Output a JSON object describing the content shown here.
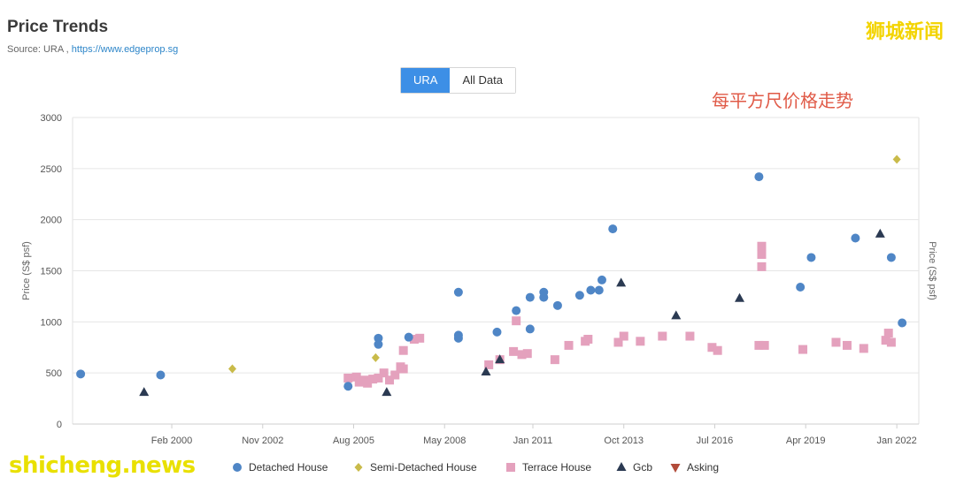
{
  "header": {
    "title": "Price Trends",
    "source_prefix": "Source: URA ,",
    "source_link": "https://www.edgeprop.sg"
  },
  "toggle": {
    "active": "URA",
    "inactive": "All Data"
  },
  "annotation": "每平方尺价格走势",
  "watermark_top": "狮城新闻",
  "watermark_bottom": "shicheng.news",
  "colors": {
    "detached": "#4f86c6",
    "semi": "#c9bb4a",
    "terrace": "#e4a1bd",
    "gcb": "#2b3a52",
    "asking": "#b24b3a",
    "grid": "#e6e6e6"
  },
  "chart_data": {
    "type": "scatter",
    "ylabel": "Price (S$ psf)",
    "ylabel_right": "Price (S$ psf)",
    "ylim": [
      0,
      3000
    ],
    "yticks": [
      0,
      500,
      1000,
      1500,
      2000,
      2500,
      3000
    ],
    "xlim": [
      "1997-02-01",
      "2022-09-01"
    ],
    "xticks": [
      {
        "date": "2000-02-01",
        "label": "Feb 2000"
      },
      {
        "date": "2002-11-01",
        "label": "Nov 2002"
      },
      {
        "date": "2005-08-01",
        "label": "Aug 2005"
      },
      {
        "date": "2008-05-01",
        "label": "May 2008"
      },
      {
        "date": "2011-01-01",
        "label": "Jan 2011"
      },
      {
        "date": "2013-10-01",
        "label": "Oct 2013"
      },
      {
        "date": "2016-07-01",
        "label": "Jul 2016"
      },
      {
        "date": "2019-04-01",
        "label": "Apr 2019"
      },
      {
        "date": "2022-01-01",
        "label": "Jan 2022"
      }
    ],
    "grid": true,
    "legend_position": "bottom",
    "series": [
      {
        "name": "Detached House",
        "points": [
          [
            "1997-05-01",
            490
          ],
          [
            "1999-10-01",
            480
          ],
          [
            "2005-06-01",
            370
          ],
          [
            "2006-05-01",
            840
          ],
          [
            "2006-05-01",
            780
          ],
          [
            "2007-04-01",
            850
          ],
          [
            "2008-10-01",
            840
          ],
          [
            "2008-10-01",
            870
          ],
          [
            "2008-10-01",
            1290
          ],
          [
            "2009-12-01",
            900
          ],
          [
            "2010-07-01",
            1110
          ],
          [
            "2010-12-01",
            1240
          ],
          [
            "2010-12-01",
            930
          ],
          [
            "2011-05-01",
            1290
          ],
          [
            "2011-05-01",
            1240
          ],
          [
            "2011-10-01",
            1160
          ],
          [
            "2012-06-01",
            1260
          ],
          [
            "2012-10-01",
            1310
          ],
          [
            "2013-01-01",
            1310
          ],
          [
            "2013-02-01",
            1410
          ],
          [
            "2013-06-01",
            1910
          ],
          [
            "2017-11-01",
            2420
          ],
          [
            "2019-02-01",
            1340
          ],
          [
            "2019-06-01",
            1630
          ],
          [
            "2020-10-01",
            1820
          ],
          [
            "2021-11-01",
            1630
          ],
          [
            "2022-03-01",
            990
          ]
        ]
      },
      {
        "name": "Semi-Detached House",
        "points": [
          [
            "2001-12-01",
            540
          ],
          [
            "2006-04-01",
            650
          ],
          [
            "2022-01-01",
            2590
          ]
        ]
      },
      {
        "name": "Terrace House",
        "points": [
          [
            "2005-06-01",
            450
          ],
          [
            "2005-09-01",
            460
          ],
          [
            "2005-10-01",
            410
          ],
          [
            "2005-12-01",
            430
          ],
          [
            "2006-01-01",
            400
          ],
          [
            "2006-03-01",
            440
          ],
          [
            "2006-05-01",
            450
          ],
          [
            "2006-07-01",
            500
          ],
          [
            "2006-09-01",
            430
          ],
          [
            "2006-11-01",
            480
          ],
          [
            "2007-01-01",
            560
          ],
          [
            "2007-02-01",
            720
          ],
          [
            "2007-06-01",
            830
          ],
          [
            "2007-08-01",
            840
          ],
          [
            "2007-02-01",
            540
          ],
          [
            "2009-09-01",
            580
          ],
          [
            "2010-01-01",
            630
          ],
          [
            "2010-09-01",
            680
          ],
          [
            "2010-06-01",
            710
          ],
          [
            "2010-11-01",
            690
          ],
          [
            "2010-07-01",
            1010
          ],
          [
            "2011-09-01",
            630
          ],
          [
            "2012-02-01",
            770
          ],
          [
            "2012-08-01",
            810
          ],
          [
            "2012-09-01",
            830
          ],
          [
            "2013-08-01",
            800
          ],
          [
            "2013-10-01",
            860
          ],
          [
            "2014-04-01",
            810
          ],
          [
            "2014-12-01",
            860
          ],
          [
            "2015-10-01",
            860
          ],
          [
            "2016-06-01",
            750
          ],
          [
            "2016-08-01",
            720
          ],
          [
            "2017-11-01",
            770
          ],
          [
            "2017-12-01",
            1740
          ],
          [
            "2017-12-01",
            1660
          ],
          [
            "2017-12-01",
            1540
          ],
          [
            "2018-01-01",
            770
          ],
          [
            "2019-03-01",
            730
          ],
          [
            "2020-03-01",
            800
          ],
          [
            "2020-07-01",
            770
          ],
          [
            "2021-01-01",
            740
          ],
          [
            "2021-09-01",
            820
          ],
          [
            "2021-10-01",
            890
          ],
          [
            "2021-11-01",
            800
          ]
        ]
      },
      {
        "name": "Gcb",
        "points": [
          [
            "1999-04-01",
            310
          ],
          [
            "2006-08-01",
            310
          ],
          [
            "2009-08-01",
            510
          ],
          [
            "2010-01-01",
            630
          ],
          [
            "2013-09-01",
            1380
          ],
          [
            "2015-05-01",
            1060
          ],
          [
            "2017-04-01",
            1230
          ],
          [
            "2021-07-01",
            1860
          ]
        ]
      },
      {
        "name": "Asking",
        "points": []
      }
    ]
  }
}
